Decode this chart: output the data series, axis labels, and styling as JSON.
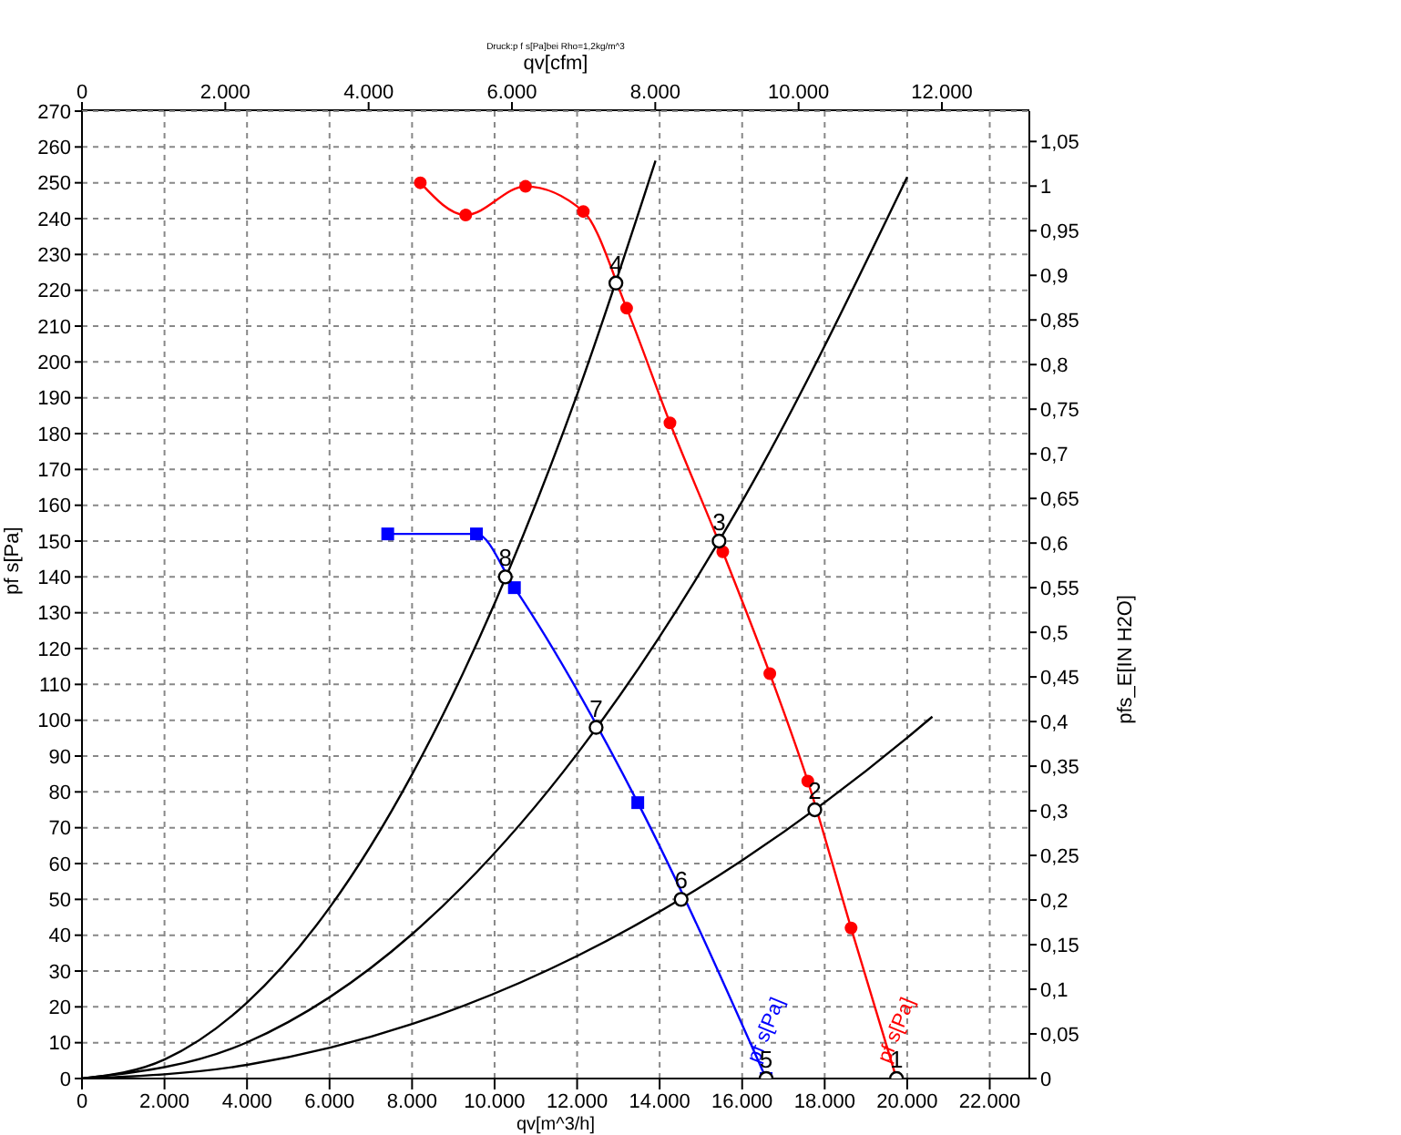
{
  "chart_data": {
    "type": "line",
    "title": "Druck:p f s[Pa]bei Rho=1,2kg/m^3",
    "xlabel": "qv[m^3/h]",
    "x2label": "qv[cfm]",
    "ylabel": "pf s[Pa]",
    "y2label": "pfs_E[IN H2O]",
    "xlim": [
      0,
      22960
    ],
    "xticks": [
      0,
      {
        "value": 2000,
        "label": "2.000"
      },
      {
        "value": 4000,
        "label": "4.000"
      },
      {
        "value": 6000,
        "label": "6.000"
      },
      {
        "value": 8000,
        "label": "8.000"
      },
      {
        "value": 10000,
        "label": "10.000"
      },
      {
        "value": 12000,
        "label": "12.000"
      },
      {
        "value": 14000,
        "label": "14.000"
      },
      {
        "value": 16000,
        "label": "16.000"
      },
      {
        "value": 18000,
        "label": "18.000"
      },
      {
        "value": 20000,
        "label": "20.000"
      },
      {
        "value": 22000,
        "label": "22.000"
      }
    ],
    "x2lim": [
      0,
      13220
    ],
    "x2ticks": [
      0,
      {
        "value": 2000,
        "label": "2.000"
      },
      {
        "value": 4000,
        "label": "4.000"
      },
      {
        "value": 6000,
        "label": "6.000"
      },
      {
        "value": 8000,
        "label": "8.000"
      },
      {
        "value": 10000,
        "label": "10.000"
      },
      {
        "value": 12000,
        "label": "12.000"
      }
    ],
    "ylim": [
      0,
      270
    ],
    "yticks": [
      0,
      10,
      20,
      30,
      40,
      50,
      60,
      70,
      80,
      90,
      100,
      110,
      120,
      130,
      140,
      150,
      160,
      170,
      180,
      190,
      200,
      210,
      220,
      230,
      240,
      250,
      260,
      270
    ],
    "y2lim": [
      0,
      1.084
    ],
    "y2ticks": [
      0,
      {
        "value": 0.05,
        "label": "0,05"
      },
      {
        "value": 0.1,
        "label": "0,1"
      },
      {
        "value": 0.15,
        "label": "0,15"
      },
      {
        "value": 0.2,
        "label": "0,2"
      },
      {
        "value": 0.25,
        "label": "0,25"
      },
      {
        "value": 0.3,
        "label": "0,3"
      },
      {
        "value": 0.35,
        "label": "0,35"
      },
      {
        "value": 0.4,
        "label": "0,4"
      },
      {
        "value": 0.45,
        "label": "0,45"
      },
      {
        "value": 0.5,
        "label": "0,5"
      },
      {
        "value": 0.55,
        "label": "0,55"
      },
      {
        "value": 0.6,
        "label": "0,6"
      },
      {
        "value": 0.65,
        "label": "0,65"
      },
      {
        "value": 0.7,
        "label": "0,7"
      },
      {
        "value": 0.75,
        "label": "0,75"
      },
      {
        "value": 0.8,
        "label": "0,8"
      },
      {
        "value": 0.85,
        "label": "0,85"
      },
      {
        "value": 0.9,
        "label": "0,9"
      },
      {
        "value": 0.95,
        "label": "0,95"
      },
      1,
      {
        "value": 1.05,
        "label": "1,05"
      }
    ],
    "grid": true,
    "legend": false,
    "line_style": "solid",
    "series": [
      {
        "name": "pf s[Pa]",
        "type": "line",
        "marker": "circle",
        "color": "#ff0000",
        "x": [
          8200,
          9300,
          10750,
          12150,
          13200,
          14250,
          15530,
          16670,
          17590,
          18640,
          19740
        ],
        "values": [
          250,
          241,
          249,
          242,
          215,
          183,
          147,
          113,
          83,
          42,
          0
        ]
      },
      {
        "name": "pf s[Pa]",
        "type": "line",
        "marker": "square",
        "color": "#0000ff",
        "x": [
          7410,
          9560,
          10480,
          13470,
          16580
        ],
        "values": [
          152,
          152,
          137,
          77,
          0
        ]
      },
      {
        "type": "line",
        "marker": "none",
        "color": "#000000",
        "x": [
          0,
          2000,
          4000,
          6000,
          8000,
          10000,
          12000,
          13900
        ],
        "values": [
          0,
          5.3,
          21.2,
          47.7,
          84.9,
          132.6,
          190.9,
          256.2
        ]
      },
      {
        "type": "line",
        "marker": "none",
        "color": "#000000",
        "x": [
          0,
          4000,
          8000,
          12000,
          16000,
          20000
        ],
        "values": [
          0,
          10.1,
          40.3,
          90.6,
          161.1,
          251.6
        ]
      },
      {
        "type": "line",
        "marker": "none",
        "color": "#000000",
        "x": [
          0,
          4000,
          8000,
          12000,
          16000,
          20000,
          20610
        ],
        "values": [
          0,
          3.8,
          15.2,
          34.2,
          60.9,
          95.1,
          101
        ]
      },
      {
        "type": "scatter",
        "marker": "circle",
        "color": "#000000",
        "x": [
          19740,
          17760,
          15440,
          12940,
          16580,
          14520,
          12460,
          10260
        ],
        "values": [
          0,
          75,
          150,
          222,
          0,
          50,
          98,
          140
        ]
      }
    ],
    "annotations": [
      {
        "text": "1",
        "x": 19740,
        "y": 0
      },
      {
        "text": "2",
        "x": 17760,
        "y": 75
      },
      {
        "text": "3",
        "x": 15440,
        "y": 150
      },
      {
        "text": "4",
        "x": 12940,
        "y": 222
      },
      {
        "text": "5",
        "x": 16580,
        "y": 0
      },
      {
        "text": "6",
        "x": 14520,
        "y": 50
      },
      {
        "text": "7",
        "x": 12460,
        "y": 98
      },
      {
        "text": "8",
        "x": 10260,
        "y": 140
      }
    ]
  }
}
